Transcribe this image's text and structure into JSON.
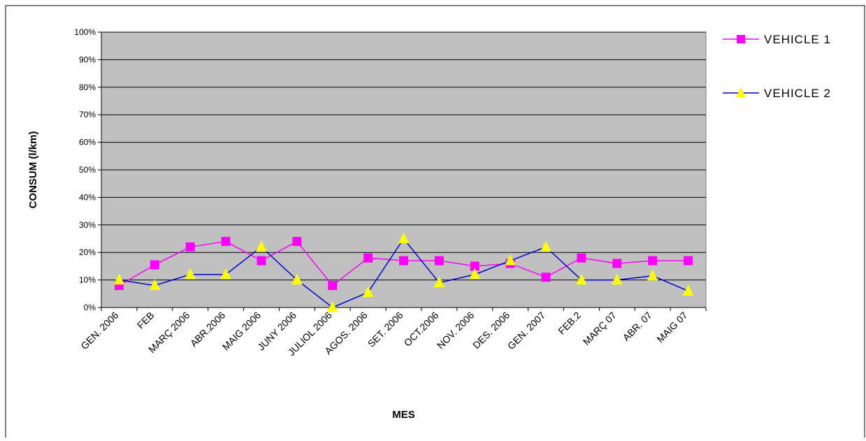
{
  "chart_data": {
    "type": "line",
    "title": "",
    "xlabel": "MES",
    "ylabel": "CONSUM (l/km)",
    "ylim": [
      0,
      1
    ],
    "yticks": [
      0,
      0.1,
      0.2,
      0.3,
      0.4,
      0.5,
      0.6,
      0.7,
      0.8,
      0.9,
      1.0
    ],
    "ytick_labels": [
      "0%",
      "10%",
      "20%",
      "30%",
      "40%",
      "50%",
      "60%",
      "70%",
      "80%",
      "90%",
      "100%"
    ],
    "categories": [
      "GEN. 2006",
      "FEB",
      "MARÇ 2006",
      "ABR.2006",
      "MAIG 2006",
      "JUNY 2006",
      "JULIOL 2006",
      "AGOS. 2006",
      "SET. 2006",
      "OCT.2006",
      "NOV. 2006",
      "DES. 2006",
      "GEN. 2007",
      "FEB.2",
      "MARÇ 07",
      "ABR. 07",
      "MAIG 07"
    ],
    "grid": true,
    "legend_position": "right",
    "plot_background": "#c0c0c0",
    "series": [
      {
        "name": "VEHICLE 1",
        "color": "#ff00ff",
        "marker": "square",
        "marker_color": "#ff00ff",
        "values": [
          0.08,
          0.155,
          0.22,
          0.24,
          0.17,
          0.24,
          0.08,
          0.18,
          0.17,
          0.17,
          0.15,
          0.16,
          0.11,
          0.18,
          0.16,
          0.17,
          0.17
        ]
      },
      {
        "name": "VEHICLE 2",
        "color": "#0000cc",
        "marker": "triangle",
        "marker_color": "#ffff00",
        "values": [
          0.1,
          0.08,
          0.12,
          0.12,
          0.22,
          0.1,
          0.0,
          0.055,
          0.25,
          0.09,
          0.12,
          0.17,
          0.22,
          0.1,
          0.1,
          0.115,
          0.06
        ]
      }
    ]
  }
}
